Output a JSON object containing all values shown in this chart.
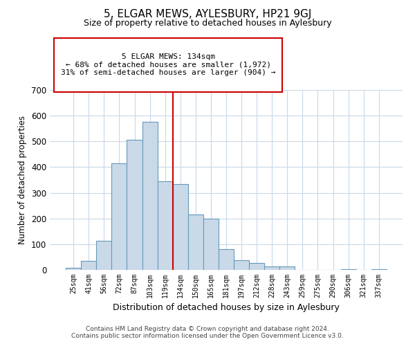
{
  "title": "5, ELGAR MEWS, AYLESBURY, HP21 9GJ",
  "subtitle": "Size of property relative to detached houses in Aylesbury",
  "xlabel": "Distribution of detached houses by size in Aylesbury",
  "ylabel": "Number of detached properties",
  "bar_labels": [
    "25sqm",
    "41sqm",
    "56sqm",
    "72sqm",
    "87sqm",
    "103sqm",
    "119sqm",
    "134sqm",
    "150sqm",
    "165sqm",
    "181sqm",
    "197sqm",
    "212sqm",
    "228sqm",
    "243sqm",
    "259sqm",
    "275sqm",
    "290sqm",
    "306sqm",
    "321sqm",
    "337sqm"
  ],
  "bar_values": [
    8,
    35,
    112,
    415,
    505,
    575,
    345,
    335,
    215,
    200,
    80,
    37,
    26,
    14,
    14,
    0,
    0,
    0,
    3,
    0,
    3
  ],
  "bar_color": "#c9d9e8",
  "bar_edge_color": "#6699bb",
  "vline_color": "#cc0000",
  "annotation_text": "5 ELGAR MEWS: 134sqm\n← 68% of detached houses are smaller (1,972)\n31% of semi-detached houses are larger (904) →",
  "annotation_box_color": "#cc0000",
  "ylim": [
    0,
    700
  ],
  "yticks": [
    0,
    100,
    200,
    300,
    400,
    500,
    600,
    700
  ],
  "footer_line1": "Contains HM Land Registry data © Crown copyright and database right 2024.",
  "footer_line2": "Contains public sector information licensed under the Open Government Licence v3.0.",
  "background_color": "#ffffff",
  "grid_color": "#c8d8e8"
}
